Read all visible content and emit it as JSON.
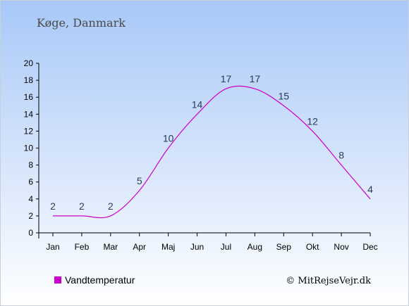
{
  "header": {
    "location": "Køge, Danmark"
  },
  "legend": {
    "label": "Vandtemperatur",
    "position": "bottom-left"
  },
  "footer": {
    "copyright": "© MitRejseVejr.dk"
  },
  "colors": {
    "background_top": "#a8c8f8",
    "background_bottom": "#ffffff",
    "line": "#cc00cc",
    "legend_swatch": "#cc00cc",
    "axis": "#000000",
    "label_text": "#2a3a5c"
  },
  "chart_data": {
    "type": "line",
    "title": "",
    "xlabel": "",
    "ylabel": "",
    "categories": [
      "Jan",
      "Feb",
      "Mar",
      "Apr",
      "Maj",
      "Jun",
      "Jul",
      "Aug",
      "Sep",
      "Okt",
      "Nov",
      "Dec"
    ],
    "series": [
      {
        "name": "Vandtemperatur",
        "values": [
          2,
          2,
          2,
          5,
          10,
          14,
          17,
          17,
          15,
          12,
          8,
          4
        ]
      }
    ],
    "ylim": [
      0,
      20
    ],
    "yticks": [
      0,
      2,
      4,
      6,
      8,
      10,
      12,
      14,
      16,
      18,
      20
    ],
    "grid": false,
    "legend": "bottom-left"
  }
}
